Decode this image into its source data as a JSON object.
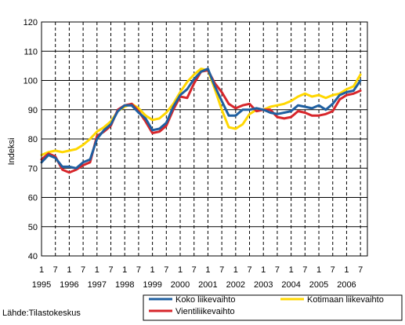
{
  "chart_data": {
    "type": "line",
    "title": "",
    "xlabel": "",
    "ylabel": "Indeksi",
    "ylim": [
      40,
      120
    ],
    "yticks": [
      "40",
      "50",
      "60",
      "70",
      "80",
      "90",
      "100",
      "110",
      "120"
    ],
    "xlim": [
      1995.0,
      2006.75
    ],
    "month_ticks": [
      "1",
      "7",
      "1",
      "7",
      "1",
      "7",
      "1",
      "7",
      "1",
      "7",
      "1",
      "7",
      "1",
      "7",
      "1",
      "7",
      "1",
      "7",
      "1",
      "7",
      "1",
      "7",
      "1",
      "7"
    ],
    "year_labels": [
      "1995",
      "1996",
      "1997",
      "1998",
      "1999",
      "2000",
      "2001",
      "2002",
      "2003",
      "2004",
      "2005",
      "2006"
    ],
    "grid": true,
    "legend_position": "bottom",
    "source": "Lähde:Tilastokeskus",
    "series": [
      {
        "name": "Koko liikevaihto",
        "color": "#1f5fa0",
        "x": [
          1995.0,
          1995.25,
          1995.5,
          1995.75,
          1996.0,
          1996.25,
          1996.5,
          1996.75,
          1997.0,
          1997.25,
          1997.5,
          1997.75,
          1998.0,
          1998.25,
          1998.5,
          1998.75,
          1999.0,
          1999.25,
          1999.5,
          1999.75,
          2000.0,
          2000.25,
          2000.5,
          2000.75,
          2001.0,
          2001.25,
          2001.5,
          2001.75,
          2002.0,
          2002.25,
          2002.5,
          2002.75,
          2003.0,
          2003.25,
          2003.5,
          2003.75,
          2004.0,
          2004.25,
          2004.5,
          2004.75,
          2005.0,
          2005.25,
          2005.5,
          2005.75,
          2006.0,
          2006.25,
          2006.5
        ],
        "y": [
          72,
          74.5,
          73.5,
          70.5,
          70.5,
          70,
          72,
          73,
          80,
          83,
          85,
          89.5,
          91.5,
          91.5,
          89,
          87,
          83,
          83.5,
          85.5,
          91,
          95,
          97,
          100.5,
          103,
          104,
          98,
          93,
          88,
          88,
          90,
          90,
          90.5,
          90,
          89,
          88.5,
          89,
          89.5,
          91.5,
          91,
          90.5,
          91.5,
          90,
          92,
          95,
          96,
          96.5,
          100
        ]
      },
      {
        "name": "Kotimaan liikevaihto",
        "color": "#ffd700",
        "x": [
          1995.0,
          1995.25,
          1995.5,
          1995.75,
          1996.0,
          1996.25,
          1996.5,
          1996.75,
          1997.0,
          1997.25,
          1997.5,
          1997.75,
          1998.0,
          1998.25,
          1998.5,
          1998.75,
          1999.0,
          1999.25,
          1999.5,
          1999.75,
          2000.0,
          2000.25,
          2000.5,
          2000.75,
          2001.0,
          2001.25,
          2001.5,
          2001.75,
          2002.0,
          2002.25,
          2002.5,
          2002.75,
          2003.0,
          2003.25,
          2003.5,
          2003.75,
          2004.0,
          2004.25,
          2004.5,
          2004.75,
          2005.0,
          2005.25,
          2005.5,
          2005.75,
          2006.0,
          2006.25,
          2006.5
        ],
        "y": [
          74.5,
          75.5,
          76,
          75.5,
          76,
          76.5,
          78,
          80,
          82.5,
          84,
          86,
          89.5,
          91,
          92,
          90.5,
          88,
          86.5,
          87,
          89,
          92,
          96,
          99.5,
          102,
          104,
          103.5,
          97,
          90,
          84,
          83.5,
          85,
          88.5,
          90,
          90,
          91,
          91.5,
          92,
          93,
          94.5,
          95.5,
          94.5,
          95,
          94,
          95,
          95.5,
          97,
          98,
          102
        ]
      },
      {
        "name": "Vientiliikevaihto",
        "color": "#d7262b",
        "x": [
          1995.0,
          1995.25,
          1995.5,
          1995.75,
          1996.0,
          1996.25,
          1996.5,
          1996.75,
          1997.0,
          1997.25,
          1997.5,
          1997.75,
          1998.0,
          1998.25,
          1998.5,
          1998.75,
          1999.0,
          1999.25,
          1999.5,
          1999.75,
          2000.0,
          2000.25,
          2000.5,
          2000.75,
          2001.0,
          2001.25,
          2001.5,
          2001.75,
          2002.0,
          2002.25,
          2002.5,
          2002.75,
          2003.0,
          2003.25,
          2003.5,
          2003.75,
          2004.0,
          2004.25,
          2004.5,
          2004.75,
          2005.0,
          2005.25,
          2005.5,
          2005.75,
          2006.0,
          2006.25,
          2006.5
        ],
        "y": [
          73,
          75,
          74,
          69.5,
          68.5,
          69.5,
          71,
          72,
          81,
          82.5,
          84.5,
          90,
          91.5,
          92,
          89.5,
          86,
          82,
          82.5,
          84.5,
          90,
          94.5,
          94,
          99,
          103,
          103.5,
          99,
          96,
          92,
          90.5,
          91.5,
          92,
          89.5,
          90,
          90,
          87.5,
          87,
          87.5,
          89.5,
          89,
          88,
          88,
          88.5,
          89.5,
          93.5,
          95,
          95.5,
          96.5
        ]
      }
    ]
  }
}
